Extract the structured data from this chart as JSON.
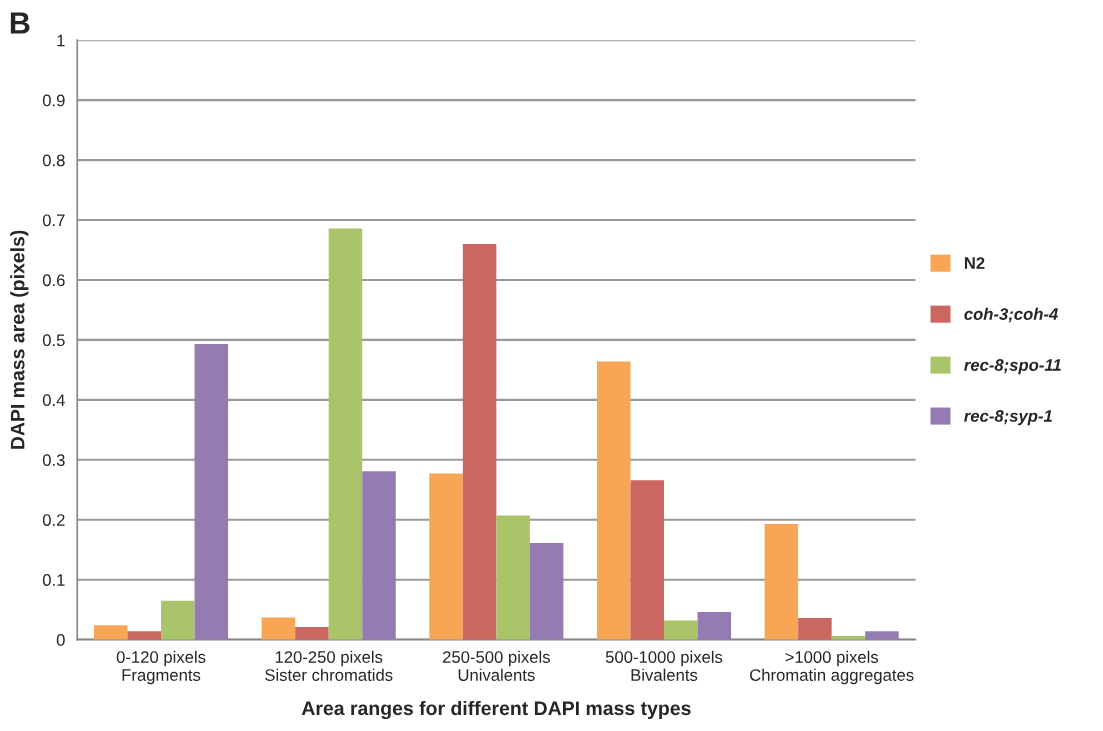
{
  "chart_data": {
    "type": "bar",
    "xlabel": "Area ranges for different DAPI mass types",
    "ylabel": "DAPI mass area (pixels)",
    "annotations": [
      "B"
    ],
    "categories": [
      "0-120 pixels\nFragments",
      "120-250 pixels\nSister chromatids",
      "250-500 pixels\nUnivalents",
      "500-1000 pixels\nBivalents",
      ">1000 pixels\nChromatin aggregates"
    ],
    "series": [
      {
        "name": "N2",
        "color": "#f8a656",
        "values": [
          0.024,
          0.037,
          0.277,
          0.464,
          0.193
        ]
      },
      {
        "name": "coh-3;coh-4",
        "color": "#cc6660",
        "values": [
          0.014,
          0.021,
          0.66,
          0.266,
          0.036
        ]
      },
      {
        "name": "rec-8;spo-11",
        "color": "#aac46a",
        "values": [
          0.065,
          0.686,
          0.207,
          0.032,
          0.006
        ]
      },
      {
        "name": "rec-8;syp-1",
        "color": "#947cb2",
        "values": [
          0.493,
          0.281,
          0.161,
          0.046,
          0.014
        ]
      }
    ],
    "ylim": [
      0,
      1
    ],
    "yticks": [
      0,
      0.1,
      0.2,
      0.3,
      0.4,
      0.5,
      0.6,
      0.7,
      0.8,
      0.9,
      1
    ],
    "grid": "y",
    "legend": "right"
  }
}
